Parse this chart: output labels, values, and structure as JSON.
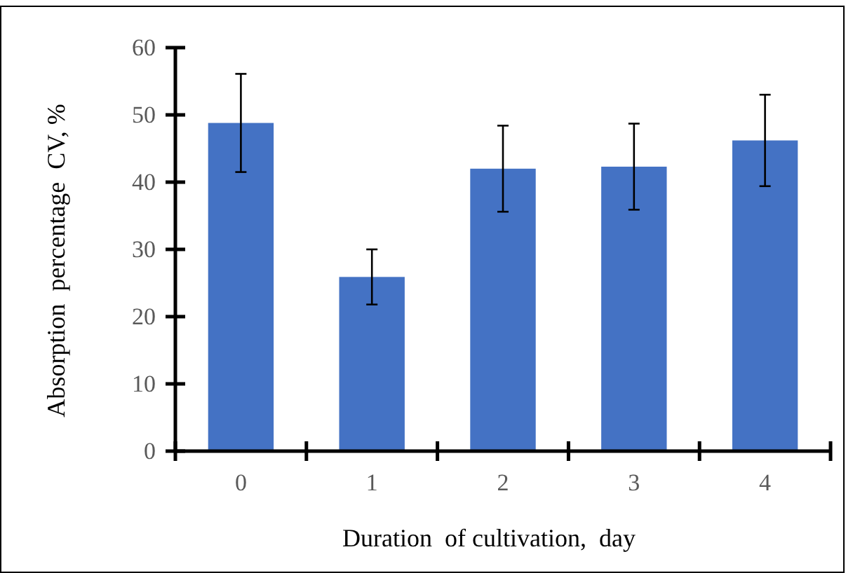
{
  "chart_data": {
    "type": "bar",
    "xlabel": "Duration  of cultivation,  day",
    "ylabel": "Absorption  percentage  CV, %",
    "categories": [
      "0",
      "1",
      "2",
      "3",
      "4"
    ],
    "values": [
      48.8,
      25.9,
      42.0,
      42.3,
      46.2
    ],
    "errors": [
      7.3,
      4.1,
      6.4,
      6.4,
      6.8
    ],
    "color": "#4472c4",
    "ylim": [
      0,
      60
    ],
    "yticks": [
      0,
      10,
      20,
      30,
      40,
      50,
      60
    ],
    "grid": false
  }
}
